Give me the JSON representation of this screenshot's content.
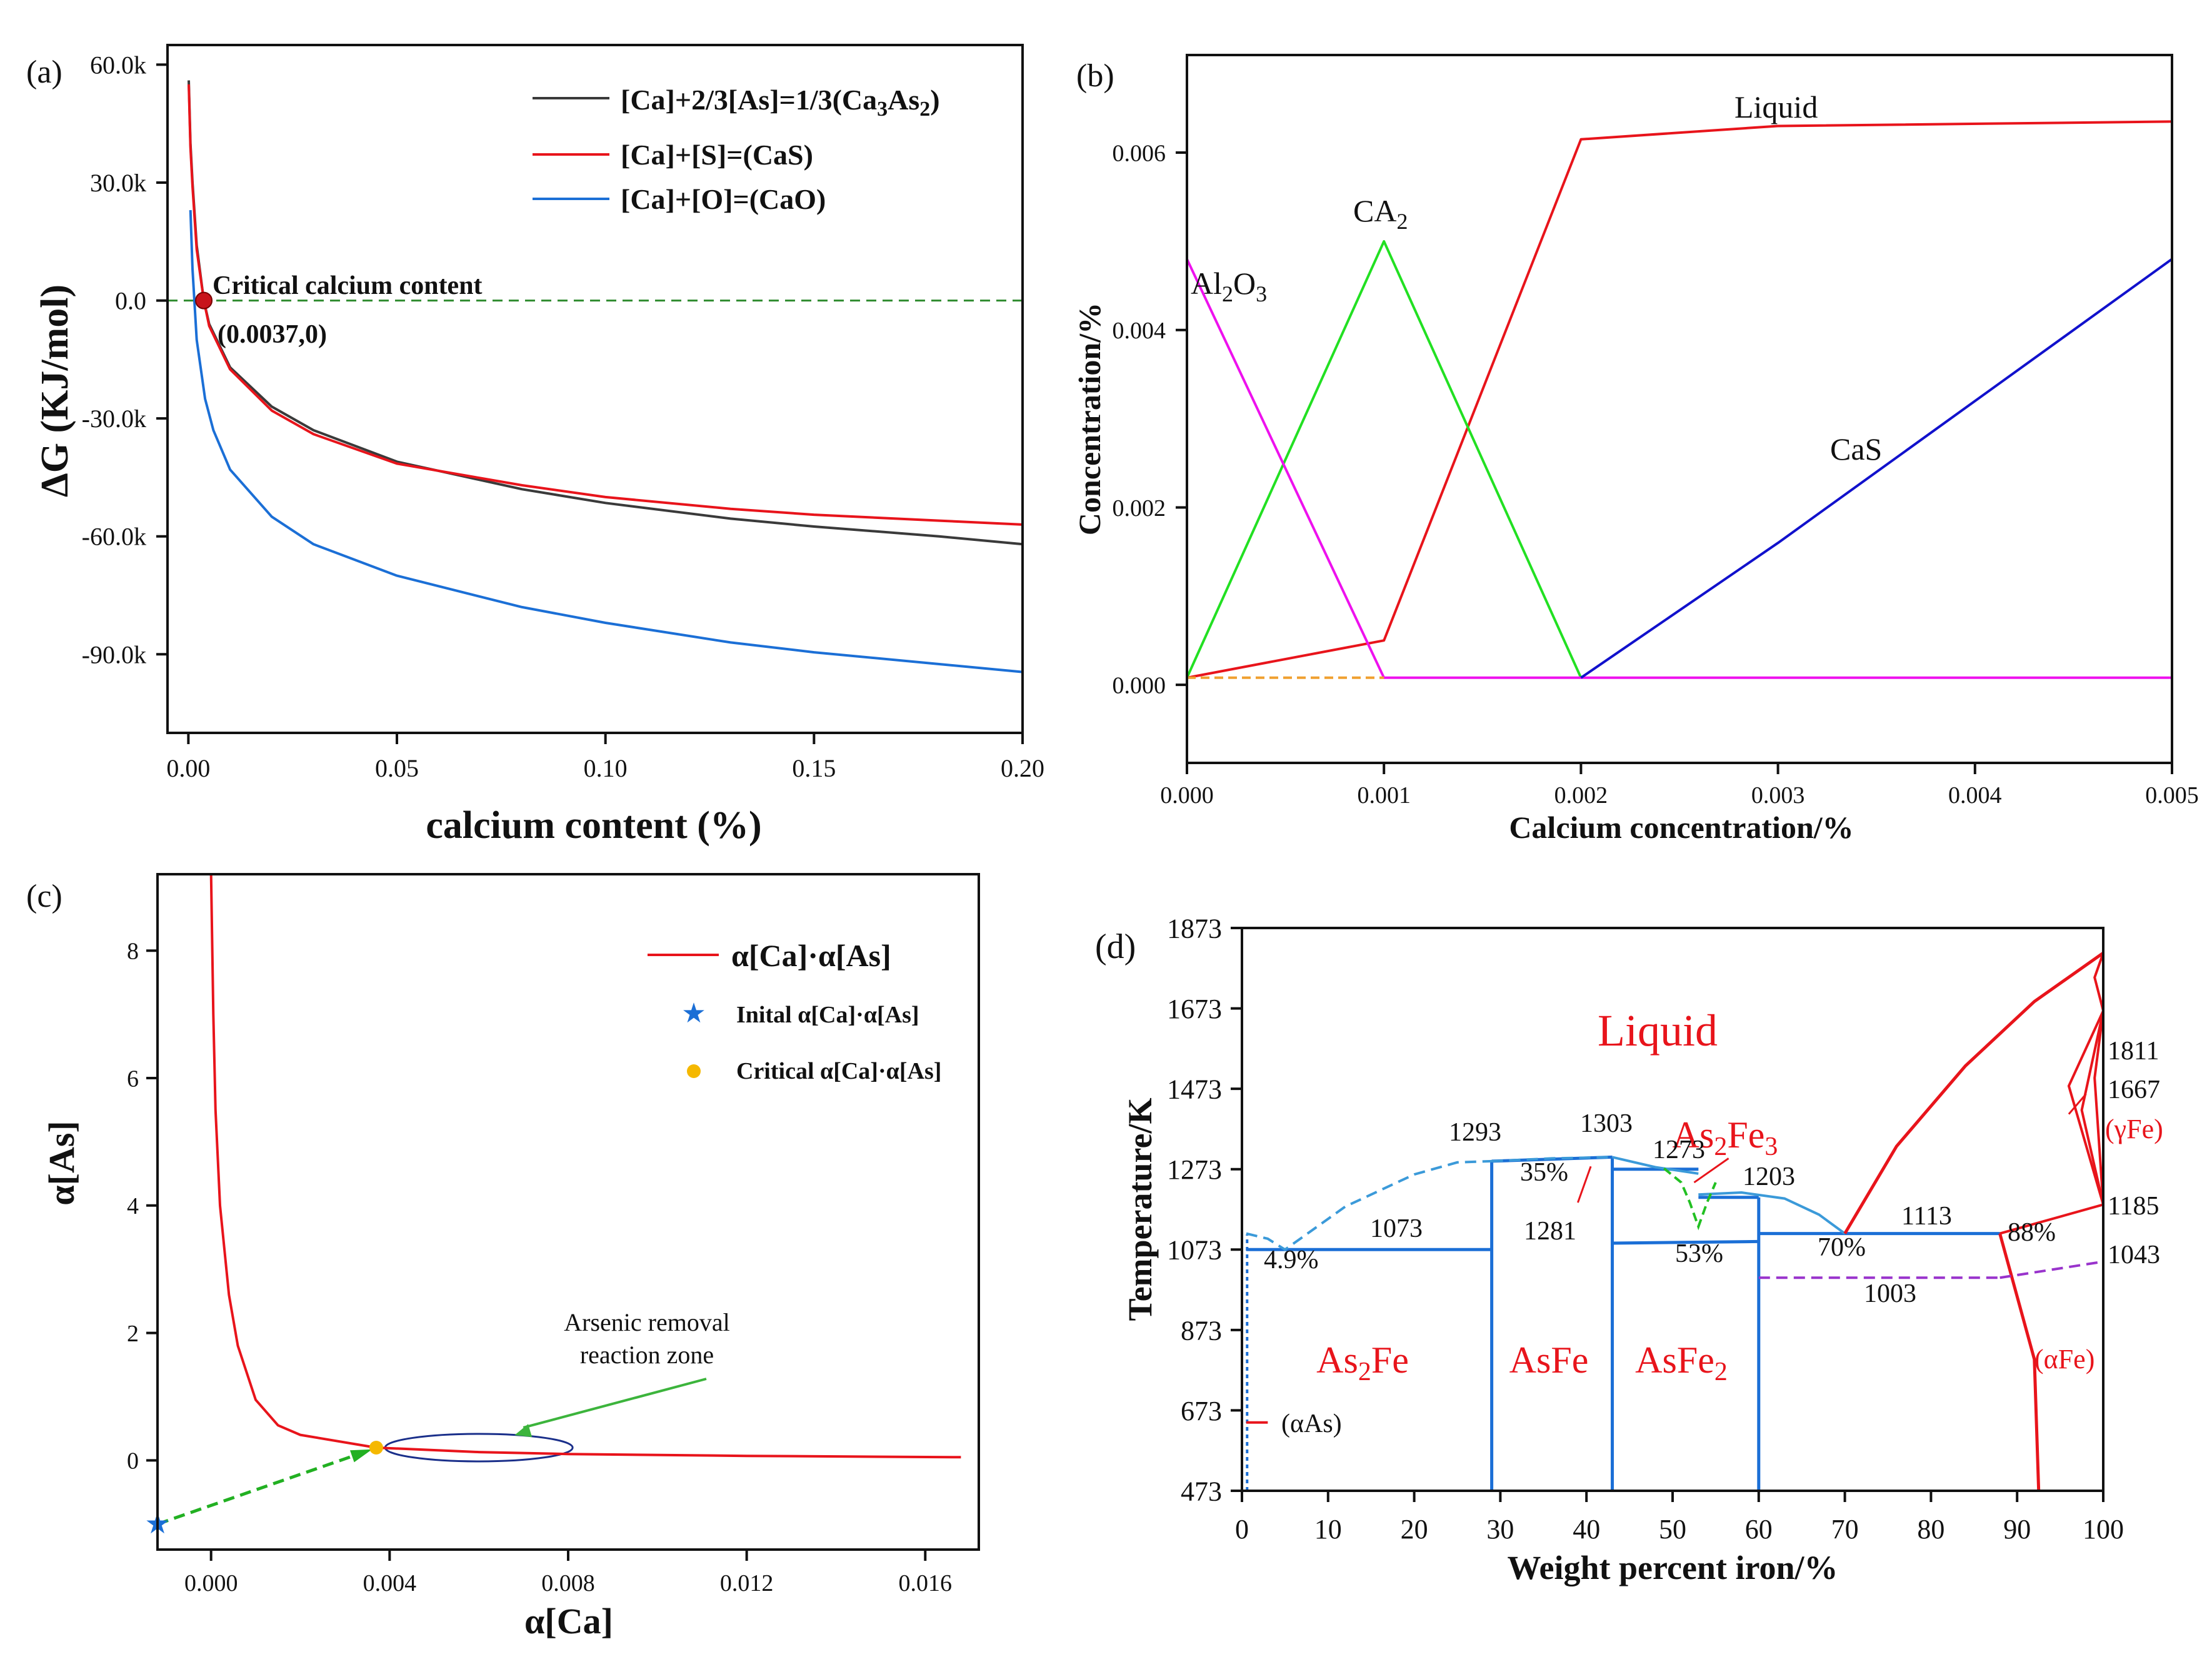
{
  "chart_data": [
    {
      "panel": "(a)",
      "type": "line",
      "xlabel": "calcium content (%)",
      "ylabel": "ΔG (KJ/mol)",
      "xlim": [
        -0.005,
        0.2
      ],
      "ylim": [
        -110000,
        65000
      ],
      "xticks": [
        0.0,
        0.05,
        0.1,
        0.15,
        0.2
      ],
      "xtick_labels": [
        "0.00",
        "0.05",
        "0.10",
        "0.15",
        "0.20"
      ],
      "yticks": [
        60000,
        30000,
        0,
        -30000,
        -60000,
        -90000
      ],
      "ytick_labels": [
        "60.0k",
        "30.0k",
        "0.0",
        "-30.0k",
        "-60.0k",
        "-90.0k"
      ],
      "series": [
        {
          "name": "[Ca]+2/3[As]=1/3(Ca3As2)",
          "legend_label": "[Ca]+2/3[As]=1/3(Ca",
          "legend_sub": "3",
          "legend_mid": "As",
          "legend_sub2": "2",
          "legend_end": ")",
          "color": "#3a3a3a",
          "x": [
            0.0001,
            0.0005,
            0.001,
            0.002,
            0.0037,
            0.005,
            0.01,
            0.02,
            0.03,
            0.05,
            0.08,
            0.1,
            0.13,
            0.15,
            0.18,
            0.2
          ],
          "y": [
            56000,
            40000,
            30000,
            14000,
            0,
            -6000,
            -17000,
            -27000,
            -33000,
            -41000,
            -48000,
            -51500,
            -55500,
            -57500,
            -60000,
            -62000
          ]
        },
        {
          "name": "[Ca]+[S]=(CaS)",
          "legend_label": "[Ca]+[S]=(CaS)",
          "color": "#e8141b",
          "x": [
            0.0001,
            0.0005,
            0.001,
            0.002,
            0.0037,
            0.005,
            0.01,
            0.02,
            0.03,
            0.05,
            0.08,
            0.1,
            0.13,
            0.15,
            0.18,
            0.2
          ],
          "y": [
            55000,
            39000,
            29000,
            13000,
            0,
            -6500,
            -17500,
            -28000,
            -34000,
            -41500,
            -47000,
            -50000,
            -53000,
            -54500,
            -56000,
            -57000
          ]
        },
        {
          "name": "[Ca]+[O]=(CaO)",
          "legend_label": "[Ca]+[O]=(CaO)",
          "color": "#1b6fd6",
          "x": [
            0.0005,
            0.001,
            0.002,
            0.004,
            0.006,
            0.01,
            0.02,
            0.03,
            0.05,
            0.08,
            0.1,
            0.13,
            0.15,
            0.18,
            0.2
          ],
          "y": [
            23000,
            8000,
            -10000,
            -25000,
            -33000,
            -43000,
            -55000,
            -62000,
            -70000,
            -78000,
            -82000,
            -87000,
            -89500,
            -92500,
            -94500
          ]
        }
      ],
      "reference_line": {
        "y": 0,
        "color": "#2e8b2e",
        "style": "dashed"
      },
      "marker": {
        "x": 0.0037,
        "y": 0,
        "color": "#c8141b"
      },
      "annotations": [
        "Critical calcium content",
        "(0.0037,0)"
      ]
    },
    {
      "panel": "(b)",
      "type": "line",
      "xlabel": "Calcium concentration/%",
      "ylabel": "Concentration/%",
      "xlim": [
        0,
        0.005
      ],
      "ylim": [
        -0.00088,
        0.0071
      ],
      "xticks": [
        0,
        0.001,
        0.002,
        0.003,
        0.004,
        0.005
      ],
      "xtick_labels": [
        "0.000",
        "0.001",
        "0.002",
        "0.003",
        "0.004",
        "0.005"
      ],
      "yticks": [
        0,
        0.002,
        0.004,
        0.006
      ],
      "ytick_labels": [
        "0.000",
        "0.002",
        "0.004",
        "0.006"
      ],
      "series": [
        {
          "name": "Liquid",
          "color": "#e8141b",
          "x": [
            0,
            0.001,
            0.002,
            0.003,
            0.005
          ],
          "y": [
            8e-05,
            0.0005,
            0.00615,
            0.0063,
            0.00635
          ]
        },
        {
          "name": "CA2",
          "label": "CA",
          "label_sub": "2",
          "color": "#22e022",
          "x": [
            0,
            0.001,
            0.002
          ],
          "y": [
            8e-05,
            0.005,
            8e-05
          ]
        },
        {
          "name": "Al2O3",
          "label": "Al",
          "label_sub": "2",
          "label_mid": "O",
          "label_sub2": "3",
          "color": "#ee11ee",
          "x": [
            0,
            0.001,
            0.005
          ],
          "y": [
            0.0048,
            8e-05,
            8e-05
          ]
        },
        {
          "name": "CaS",
          "label": "CaS",
          "color": "#1111cc",
          "x": [
            0.002,
            0.003,
            0.005
          ],
          "y": [
            8e-05,
            0.0016,
            0.0048
          ]
        },
        {
          "name": "baseline",
          "color": "#f0a030",
          "x": [
            0,
            0.001
          ],
          "y": [
            8e-05,
            8e-05
          ],
          "dashed": true
        }
      ]
    },
    {
      "panel": "(c)",
      "type": "line",
      "xlabel": "α[Ca]",
      "ylabel": "α[As]",
      "xlim": [
        -0.0012,
        0.0172
      ],
      "ylim": [
        -1.4,
        9.2
      ],
      "xticks": [
        0,
        0.004,
        0.008,
        0.012,
        0.016
      ],
      "xtick_labels": [
        "0.000",
        "0.004",
        "0.008",
        "0.012",
        "0.016"
      ],
      "yticks": [
        0,
        2,
        4,
        6,
        8
      ],
      "ytick_labels": [
        "0",
        "2",
        "4",
        "6",
        "8"
      ],
      "series": [
        {
          "name": "α[Ca]·α[As]",
          "color": "#e8141b",
          "x": [
            0,
            5e-05,
            0.0001,
            0.0002,
            0.0004,
            0.0006,
            0.001,
            0.0015,
            0.002,
            0.0037,
            0.006,
            0.008,
            0.012,
            0.0168
          ],
          "y": [
            9.2,
            7.0,
            5.5,
            4.0,
            2.6,
            1.8,
            0.95,
            0.55,
            0.4,
            0.2,
            0.13,
            0.1,
            0.07,
            0.05
          ]
        }
      ],
      "points": [
        {
          "name": "Inital α[Ca]·α[As]",
          "x": -0.0012,
          "y": -1.0,
          "color": "#1b6fd6",
          "marker": "star"
        },
        {
          "name": "Critical α[Ca]·α[As]",
          "x": 0.0037,
          "y": 0.2,
          "color": "#f5b800",
          "marker": "circle"
        }
      ],
      "annotations": [
        "Arsenic removal",
        "reaction zone"
      ]
    },
    {
      "panel": "(d)",
      "type": "line",
      "xlabel": "Weight percent iron/%",
      "ylabel": "Temperature/K",
      "xlim": [
        0,
        100
      ],
      "ylim": [
        473,
        1873
      ],
      "xticks": [
        0,
        10,
        20,
        30,
        40,
        50,
        60,
        70,
        80,
        90,
        100
      ],
      "xtick_labels": [
        "0",
        "10",
        "20",
        "30",
        "40",
        "50",
        "60",
        "70",
        "80",
        "90",
        "100"
      ],
      "yticks": [
        473,
        673,
        873,
        1073,
        1273,
        1473,
        1673,
        1873
      ],
      "ytick_labels": [
        "473",
        "673",
        "873",
        "1073",
        "1273",
        "1473",
        "1673",
        "1873"
      ],
      "phase_labels": {
        "liquid": "Liquid",
        "as2fe_pre": "As",
        "as2fe_sub": "2",
        "as2fe_post": "Fe",
        "asfe": "AsFe",
        "asfe2_pre": "AsFe",
        "asfe2_sub": "2",
        "as2fe3_pre": "As",
        "as2fe3_sub": "2",
        "as2fe3_mid": "Fe",
        "as2fe3_sub2": "3",
        "gfe": "(γFe)",
        "afe": "(αFe)",
        "aas": "(αAs)"
      },
      "value_labels": [
        "1293",
        "1303",
        "1273",
        "1203",
        "1073",
        "1113",
        "35%",
        "1281",
        "53%",
        "70%",
        "88%",
        "4.9%",
        "1003",
        "1811",
        "1667",
        "1185",
        "1043"
      ]
    }
  ],
  "panel_labels": [
    "(a)",
    "(b)",
    "(c)",
    "(d)"
  ],
  "colors": {
    "red": "#e8141b",
    "blue": "#1b6fd6",
    "lightblue": "#3b9ad9",
    "green": "#22e022",
    "magenta": "#ee11ee",
    "purple": "#9933cc",
    "dkgreen": "#2e8b2e"
  }
}
